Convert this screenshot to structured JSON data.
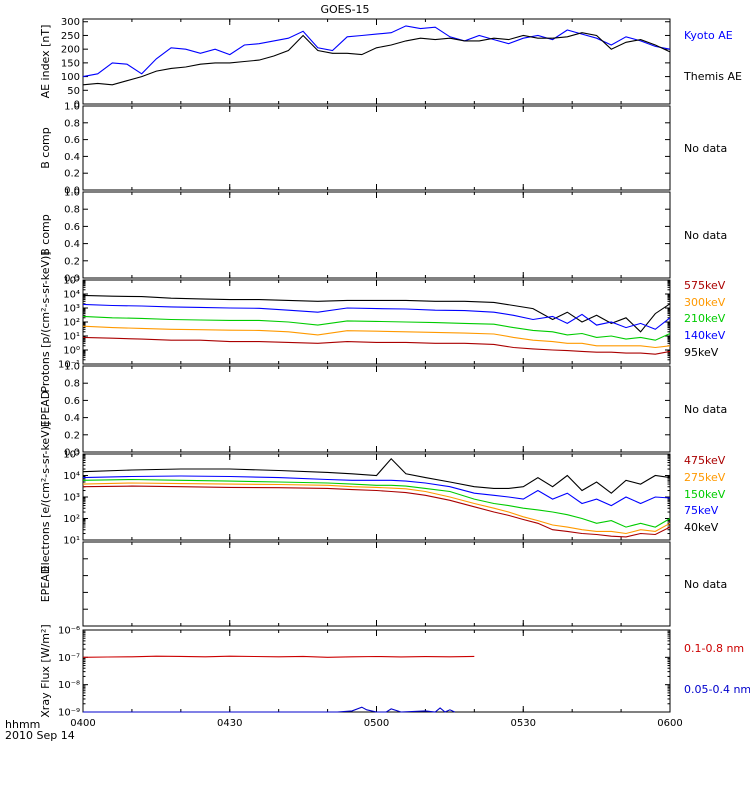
{
  "title": "GOES-15",
  "time_axis": {
    "label": "hhmm",
    "date": "2010 Sep 14",
    "tick_labels": [
      "0400",
      "0430",
      "0500",
      "0530",
      "0600"
    ],
    "range_minutes": [
      0,
      120
    ],
    "tick_minutes": [
      0,
      30,
      60,
      90,
      120
    ]
  },
  "chart_data": [
    {
      "id": "ae",
      "type": "line",
      "ylabel": "AE index [nT]",
      "scale": "linear",
      "ylim": [
        0,
        310
      ],
      "ticks": [
        0,
        50,
        100,
        150,
        200,
        250,
        300
      ],
      "tick_labels": [
        "0",
        "50",
        "100",
        "150",
        "200",
        "250",
        "300"
      ],
      "series": [
        {
          "name": "Kyoto AE",
          "color": "#0000ff",
          "x": [
            0,
            3,
            6,
            9,
            12,
            15,
            18,
            21,
            24,
            27,
            30,
            33,
            36,
            39,
            42,
            45,
            48,
            51,
            54,
            57,
            60,
            63,
            66,
            69,
            72,
            75,
            78,
            81,
            84,
            87,
            90,
            93,
            96,
            99,
            102,
            105,
            108,
            111,
            114,
            117,
            120
          ],
          "y": [
            100,
            110,
            150,
            145,
            110,
            165,
            205,
            200,
            185,
            200,
            180,
            215,
            220,
            230,
            240,
            265,
            205,
            195,
            245,
            250,
            255,
            260,
            285,
            275,
            280,
            245,
            230,
            250,
            235,
            220,
            240,
            250,
            235,
            270,
            255,
            240,
            215,
            245,
            230,
            210,
            200
          ]
        },
        {
          "name": "Themis AE",
          "color": "#000000",
          "x": [
            0,
            3,
            6,
            9,
            12,
            15,
            18,
            21,
            24,
            27,
            30,
            33,
            36,
            39,
            42,
            45,
            48,
            51,
            54,
            57,
            60,
            63,
            66,
            69,
            72,
            75,
            78,
            81,
            84,
            87,
            90,
            93,
            96,
            99,
            102,
            105,
            108,
            111,
            114,
            117,
            120
          ],
          "y": [
            70,
            75,
            70,
            85,
            100,
            120,
            130,
            135,
            145,
            150,
            150,
            155,
            160,
            175,
            195,
            250,
            195,
            185,
            185,
            180,
            205,
            215,
            230,
            240,
            235,
            240,
            230,
            230,
            240,
            235,
            250,
            240,
            240,
            245,
            260,
            250,
            200,
            225,
            235,
            215,
            190
          ]
        }
      ]
    },
    {
      "id": "b1",
      "type": "line",
      "ylabel": "B comp",
      "scale": "linear",
      "ylim": [
        0,
        1
      ],
      "ticks": [
        0,
        0.2,
        0.4,
        0.6,
        0.8,
        1.0
      ],
      "tick_labels": [
        "0.0",
        "0.2",
        "0.4",
        "0.6",
        "0.8",
        "1.0"
      ],
      "message": "No data",
      "series": []
    },
    {
      "id": "b2",
      "type": "line",
      "ylabel": "B comp",
      "scale": "linear",
      "ylim": [
        0,
        1
      ],
      "ticks": [
        0,
        0.2,
        0.4,
        0.6,
        0.8,
        1.0
      ],
      "tick_labels": [
        "0.0",
        "0.2",
        "0.4",
        "0.6",
        "0.8",
        "1.0"
      ],
      "message": "No data",
      "series": []
    },
    {
      "id": "protons",
      "type": "line",
      "ylabel": "Protons [p/(cm²-s-sr-keV)]",
      "scale": "log",
      "ylim": [
        0.1,
        100000
      ],
      "ticks": [
        0.1,
        1,
        10,
        100,
        1000,
        10000,
        100000
      ],
      "tick_labels": [
        "10⁻¹",
        "10⁰",
        "10¹",
        "10²",
        "10³",
        "10⁴",
        "10⁵"
      ],
      "series": [
        {
          "name": "95keV",
          "color": "#000000",
          "x": [
            0,
            6,
            12,
            18,
            24,
            30,
            36,
            42,
            48,
            54,
            60,
            66,
            72,
            78,
            84,
            88,
            92,
            96,
            99,
            102,
            105,
            108,
            111,
            114,
            117,
            120
          ],
          "y": [
            8000,
            7000,
            6500,
            5000,
            4500,
            4000,
            4000,
            3500,
            3000,
            3500,
            3500,
            3500,
            3000,
            3000,
            2500,
            1500,
            900,
            150,
            500,
            100,
            300,
            80,
            200,
            20,
            400,
            2000
          ]
        },
        {
          "name": "140keV",
          "color": "#0000ff",
          "x": [
            0,
            6,
            12,
            18,
            24,
            30,
            36,
            42,
            48,
            54,
            60,
            66,
            72,
            78,
            84,
            88,
            92,
            96,
            99,
            102,
            105,
            108,
            111,
            114,
            117,
            120
          ],
          "y": [
            1800,
            1500,
            1400,
            1200,
            1100,
            1000,
            950,
            700,
            500,
            1000,
            900,
            850,
            700,
            650,
            500,
            300,
            150,
            250,
            80,
            350,
            60,
            100,
            40,
            80,
            30,
            200
          ]
        },
        {
          "name": "210keV",
          "color": "#00cc00",
          "x": [
            0,
            6,
            12,
            18,
            24,
            30,
            36,
            42,
            48,
            54,
            60,
            66,
            72,
            78,
            84,
            88,
            92,
            96,
            99,
            102,
            105,
            108,
            111,
            114,
            117,
            120
          ],
          "y": [
            250,
            200,
            180,
            150,
            140,
            130,
            130,
            100,
            60,
            120,
            110,
            100,
            90,
            80,
            70,
            40,
            25,
            20,
            12,
            15,
            8,
            10,
            6,
            8,
            5,
            15
          ]
        },
        {
          "name": "300keV",
          "color": "#ff9900",
          "x": [
            0,
            6,
            12,
            18,
            24,
            30,
            36,
            42,
            48,
            54,
            60,
            66,
            72,
            78,
            84,
            88,
            92,
            96,
            99,
            102,
            105,
            108,
            111,
            114,
            117,
            120
          ],
          "y": [
            50,
            40,
            35,
            30,
            28,
            26,
            25,
            20,
            12,
            24,
            22,
            20,
            18,
            16,
            14,
            8,
            5,
            4,
            3,
            3,
            2,
            2,
            2,
            2,
            1.5,
            2
          ]
        },
        {
          "name": "575keV",
          "color": "#aa0000",
          "x": [
            0,
            6,
            12,
            18,
            24,
            30,
            36,
            42,
            48,
            54,
            60,
            66,
            72,
            78,
            84,
            88,
            92,
            96,
            99,
            102,
            105,
            108,
            111,
            114,
            117,
            120
          ],
          "y": [
            8,
            7,
            6,
            5,
            5,
            4,
            4,
            3.5,
            3,
            4,
            3.5,
            3.5,
            3,
            3,
            2.5,
            1.5,
            1.2,
            1,
            0.9,
            0.8,
            0.7,
            0.7,
            0.6,
            0.6,
            0.5,
            0.8
          ]
        }
      ]
    },
    {
      "id": "epead1",
      "type": "line",
      "ylabel": "EPEAD",
      "scale": "linear",
      "ylim": [
        0,
        1
      ],
      "ticks": [
        0,
        0.2,
        0.4,
        0.6,
        0.8,
        1.0
      ],
      "tick_labels": [
        "0.0",
        "0.2",
        "0.4",
        "0.6",
        "0.8",
        "1.0"
      ],
      "message": "No data",
      "series": []
    },
    {
      "id": "electrons",
      "type": "line",
      "ylabel": "Electrons [e/(cm²-s-sr-keV)]",
      "scale": "log",
      "ylim": [
        10,
        100000
      ],
      "ticks": [
        10,
        100,
        1000,
        10000,
        100000
      ],
      "tick_labels": [
        "10¹",
        "10²",
        "10³",
        "10⁴",
        "10⁵"
      ],
      "series": [
        {
          "name": "40keV",
          "color": "#000000",
          "x": [
            0,
            10,
            20,
            30,
            40,
            50,
            55,
            60,
            63,
            66,
            70,
            75,
            80,
            84,
            87,
            90,
            93,
            96,
            99,
            102,
            105,
            108,
            111,
            114,
            117,
            120
          ],
          "y": [
            15000,
            18000,
            20000,
            20000,
            17000,
            14000,
            12000,
            10000,
            60000,
            12000,
            8000,
            5000,
            3000,
            2500,
            2500,
            3000,
            8000,
            3000,
            10000,
            2000,
            5000,
            1500,
            6000,
            4000,
            10000,
            8000
          ]
        },
        {
          "name": "75keV",
          "color": "#0000ff",
          "x": [
            0,
            10,
            20,
            30,
            40,
            50,
            55,
            60,
            63,
            66,
            70,
            75,
            80,
            84,
            87,
            90,
            93,
            96,
            99,
            102,
            105,
            108,
            111,
            114,
            117,
            120
          ],
          "y": [
            8000,
            9000,
            9500,
            9000,
            8000,
            6500,
            6000,
            6000,
            6000,
            5500,
            4500,
            3000,
            1500,
            1200,
            1000,
            800,
            2000,
            800,
            1500,
            500,
            800,
            400,
            1000,
            500,
            1000,
            900
          ]
        },
        {
          "name": "150keV",
          "color": "#00cc00",
          "x": [
            0,
            10,
            20,
            30,
            40,
            50,
            55,
            60,
            63,
            66,
            70,
            75,
            80,
            84,
            87,
            90,
            93,
            96,
            99,
            102,
            105,
            108,
            111,
            114,
            117,
            120
          ],
          "y": [
            6000,
            6500,
            6000,
            5500,
            5000,
            4500,
            4000,
            3500,
            3500,
            3200,
            2500,
            1800,
            800,
            500,
            400,
            300,
            250,
            200,
            150,
            100,
            60,
            80,
            40,
            60,
            40,
            100
          ]
        },
        {
          "name": "275keV",
          "color": "#ff9900",
          "x": [
            0,
            10,
            20,
            30,
            40,
            50,
            55,
            60,
            63,
            66,
            70,
            75,
            80,
            84,
            87,
            90,
            93,
            96,
            99,
            102,
            105,
            108,
            111,
            114,
            117,
            120
          ],
          "y": [
            4000,
            4500,
            4200,
            4000,
            3800,
            3500,
            3000,
            2800,
            2600,
            2400,
            1800,
            1000,
            500,
            300,
            200,
            120,
            80,
            50,
            40,
            30,
            25,
            25,
            20,
            30,
            25,
            60
          ]
        },
        {
          "name": "475keV",
          "color": "#aa0000",
          "x": [
            0,
            10,
            20,
            30,
            40,
            50,
            55,
            60,
            63,
            66,
            70,
            75,
            80,
            84,
            87,
            90,
            93,
            96,
            99,
            102,
            105,
            108,
            111,
            114,
            117,
            120
          ],
          "y": [
            3000,
            3200,
            3000,
            2800,
            2700,
            2500,
            2200,
            2000,
            1800,
            1600,
            1200,
            700,
            350,
            200,
            140,
            90,
            60,
            30,
            25,
            20,
            18,
            15,
            14,
            20,
            18,
            40
          ]
        }
      ]
    },
    {
      "id": "epead2",
      "type": "line",
      "ylabel": "EPEAD",
      "scale": "linear",
      "ylim": [
        0,
        1
      ],
      "ticks": [
        0,
        0.2,
        0.4,
        0.6,
        0.8,
        1.0
      ],
      "tick_labels": [],
      "message": "No data",
      "series": []
    },
    {
      "id": "xray",
      "type": "line",
      "ylabel": "Xray Flux [W/m²]",
      "scale": "log",
      "ylim": [
        1e-09,
        1e-06
      ],
      "ticks": [
        1e-09,
        1e-08,
        1e-07,
        1e-06
      ],
      "tick_labels": [
        "10⁻⁹",
        "10⁻⁸",
        "10⁻⁷",
        "10⁻⁶"
      ],
      "series": [
        {
          "name": "0.1-0.8 nm",
          "color": "#cc0000",
          "x": [
            0,
            5,
            10,
            15,
            20,
            25,
            30,
            35,
            40,
            45,
            50,
            55,
            60,
            65,
            70,
            75,
            80
          ],
          "y": [
            1e-07,
            1.03e-07,
            1.05e-07,
            1.1e-07,
            1.08e-07,
            1.05e-07,
            1.1e-07,
            1.07e-07,
            1.05e-07,
            1.08e-07,
            1e-07,
            1.05e-07,
            1.07e-07,
            1.04e-07,
            1.06e-07,
            1.05e-07,
            1.08e-07
          ]
        },
        {
          "name": "0.05-0.4 nm",
          "color": "#0000cc",
          "x": [
            0,
            40,
            48,
            52,
            55,
            57,
            58,
            60,
            62,
            63,
            65,
            70,
            72,
            73,
            74,
            75,
            76
          ],
          "y": [
            1e-09,
            1e-09,
            1e-09,
            1e-09,
            1.1e-09,
            1.5e-09,
            1.2e-09,
            1e-09,
            1e-09,
            1.3e-09,
            1e-09,
            1.1e-09,
            1e-09,
            1.4e-09,
            1e-09,
            1.2e-09,
            1e-09
          ]
        }
      ]
    }
  ]
}
